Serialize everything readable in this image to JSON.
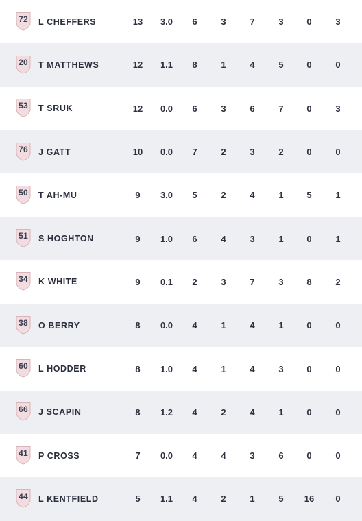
{
  "colors": {
    "row_bg": "#ffffff",
    "row_alt_bg": "#eeeff3",
    "shield_fill": "#f2dcdf",
    "shield_stroke": "#d8b3b9",
    "text": "#2f3140"
  },
  "shield_icon": "jersey-shield-icon",
  "players": [
    {
      "number": "72",
      "name": "L CHEFFERS",
      "stats": [
        "13",
        "3.0",
        "6",
        "3",
        "7",
        "3",
        "0",
        "3"
      ]
    },
    {
      "number": "20",
      "name": "T MATTHEWS",
      "stats": [
        "12",
        "1.1",
        "8",
        "1",
        "4",
        "5",
        "0",
        "0"
      ]
    },
    {
      "number": "53",
      "name": "T SRUK",
      "stats": [
        "12",
        "0.0",
        "6",
        "3",
        "6",
        "7",
        "0",
        "3"
      ]
    },
    {
      "number": "76",
      "name": "J GATT",
      "stats": [
        "10",
        "0.0",
        "7",
        "2",
        "3",
        "2",
        "0",
        "0"
      ]
    },
    {
      "number": "50",
      "name": "T AH-MU",
      "stats": [
        "9",
        "3.0",
        "5",
        "2",
        "4",
        "1",
        "5",
        "1"
      ]
    },
    {
      "number": "51",
      "name": "S HOGHTON",
      "stats": [
        "9",
        "1.0",
        "6",
        "4",
        "3",
        "1",
        "0",
        "1"
      ]
    },
    {
      "number": "34",
      "name": "K WHITE",
      "stats": [
        "9",
        "0.1",
        "2",
        "3",
        "7",
        "3",
        "8",
        "2"
      ]
    },
    {
      "number": "38",
      "name": "O BERRY",
      "stats": [
        "8",
        "0.0",
        "4",
        "1",
        "4",
        "1",
        "0",
        "0"
      ]
    },
    {
      "number": "60",
      "name": "L HODDER",
      "stats": [
        "8",
        "1.0",
        "4",
        "1",
        "4",
        "3",
        "0",
        "0"
      ]
    },
    {
      "number": "66",
      "name": "J SCAPIN",
      "stats": [
        "8",
        "1.2",
        "4",
        "2",
        "4",
        "1",
        "0",
        "0"
      ]
    },
    {
      "number": "41",
      "name": "P CROSS",
      "stats": [
        "7",
        "0.0",
        "4",
        "4",
        "3",
        "6",
        "0",
        "0"
      ]
    },
    {
      "number": "44",
      "name": "L KENTFIELD",
      "stats": [
        "5",
        "1.1",
        "4",
        "2",
        "1",
        "5",
        "16",
        "0"
      ]
    }
  ]
}
